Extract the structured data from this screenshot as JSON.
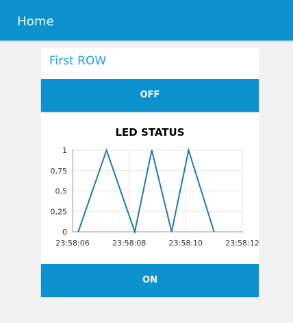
{
  "header": {
    "title": "Home"
  },
  "group": {
    "title": "First ROW"
  },
  "buttons": {
    "off_label": "OFF",
    "on_label": "ON"
  },
  "colors": {
    "accent": "#0b92cf",
    "group_title": "#1ea2e0",
    "line": "#1f77b4"
  },
  "chart_data": {
    "type": "line",
    "title": "LED STATUS",
    "xlabel": "",
    "ylabel": "",
    "x_ticks": [
      "23:58:06",
      "23:58:08",
      "23:58:10",
      "23:58:12"
    ],
    "y_ticks": [
      "0",
      "0,25",
      "0,5",
      "0,75",
      "1"
    ],
    "ylim": [
      0,
      1
    ],
    "xlim": [
      "23:58:06",
      "23:58:12"
    ],
    "grid": true,
    "series": [
      {
        "x": [
          "23:58:06.2",
          "23:58:07.2",
          "23:58:08.2",
          "23:58:08.8",
          "23:58:09.5",
          "23:58:10.1",
          "23:58:11.0"
        ],
        "values": [
          0,
          1,
          0,
          1,
          0,
          1,
          0
        ]
      }
    ]
  }
}
